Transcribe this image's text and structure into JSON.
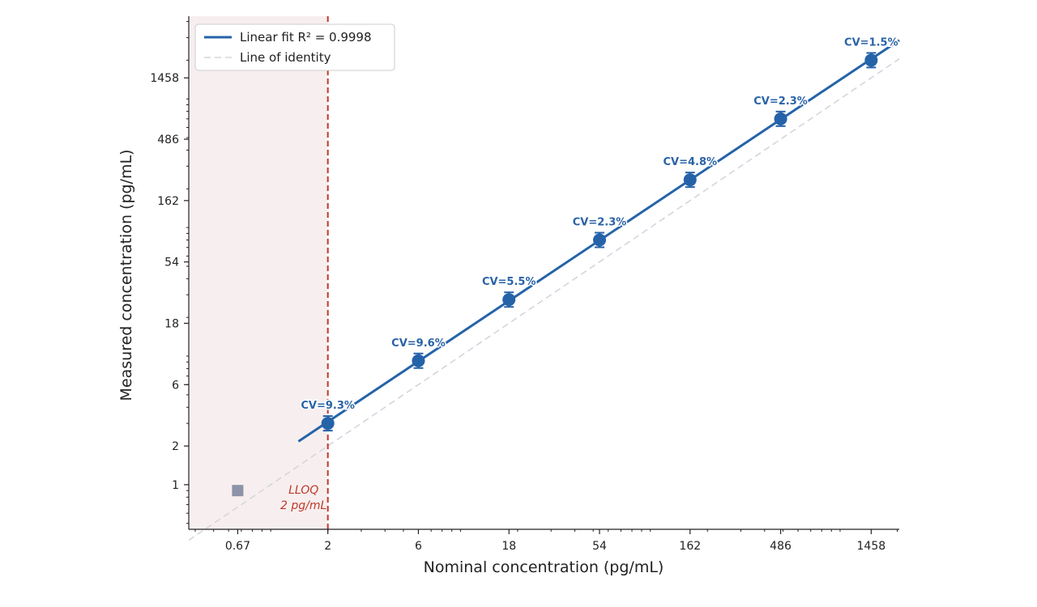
{
  "chart_data": {
    "type": "scatter",
    "xlabel": "Nominal concentration (pg/mL)",
    "ylabel": "Measured concentration (pg/mL)",
    "x_scale": "log",
    "y_scale": "log",
    "xlim": [
      0.37,
      2050
    ],
    "ylim": [
      0.45,
      4400
    ],
    "x_ticks": [
      0.67,
      2,
      6,
      18,
      54,
      162,
      486,
      1458
    ],
    "x_tick_labels": [
      "0.67",
      "2",
      "6",
      "18",
      "54",
      "162",
      "486",
      "1458"
    ],
    "y_ticks": [
      1,
      2,
      6,
      18,
      54,
      162,
      486,
      1458
    ],
    "y_tick_labels": [
      "1",
      "2",
      "6",
      "18",
      "54",
      "162",
      "486",
      "1458"
    ],
    "grid": false,
    "legend_position": "top-left",
    "points": [
      {
        "x": 2,
        "y": 3.0,
        "cv_label": "CV=9.3%"
      },
      {
        "x": 6,
        "y": 9.2,
        "cv_label": "CV=9.6%"
      },
      {
        "x": 18,
        "y": 27.5,
        "cv_label": "CV=5.5%"
      },
      {
        "x": 54,
        "y": 80,
        "cv_label": "CV=2.3%"
      },
      {
        "x": 162,
        "y": 235,
        "cv_label": "CV=4.8%"
      },
      {
        "x": 486,
        "y": 700,
        "cv_label": "CV=2.3%"
      },
      {
        "x": 1458,
        "y": 2000,
        "cv_label": "CV=1.5%"
      }
    ],
    "below_lloq_point": {
      "x": 0.67,
      "y": 0.9
    },
    "fit_line": {
      "x_start": 1.4,
      "x_end": 2050
    },
    "identity_line": {
      "x_start": 0.37,
      "x_end": 2050
    },
    "lloq": {
      "x": 2,
      "label_line1": "LLOQ",
      "label_line2": "2 pg/mL"
    },
    "legend": [
      {
        "label": "Linear fit  R² = 0.9998",
        "style": "solid"
      },
      {
        "label": "Line of identity",
        "style": "dashed"
      }
    ],
    "colors": {
      "series": "#2563a8",
      "cv_text": "#2a63a6",
      "identity": "#d3d6de",
      "lloq": "#c0392b",
      "shade": "#f7efef",
      "below_lloq": "#8d93a8",
      "axis": "#222222"
    }
  }
}
